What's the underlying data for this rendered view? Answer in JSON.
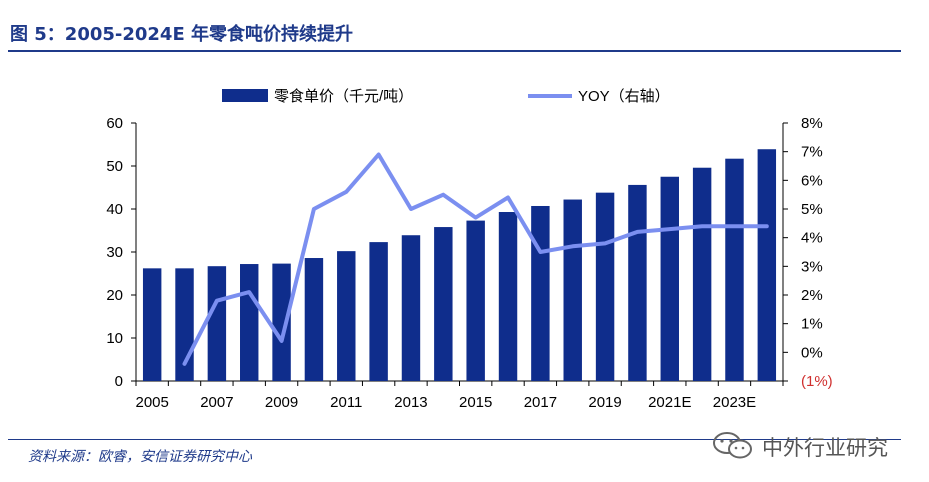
{
  "title": "图 5：2005-2024E 年零食吨价持续提升",
  "source": "资料来源：欧睿，安信证券研究中心",
  "watermark": "中外行业研究",
  "colors": {
    "bar": "#0f2d8c",
    "line": "#7b8ff0",
    "negative": "#d0302f",
    "title": "#1f3a8a",
    "text": "#000000"
  },
  "chart_data": {
    "type": "bar",
    "x": [
      "2005",
      "2006",
      "2007",
      "2008",
      "2009",
      "2010",
      "2011",
      "2012",
      "2013",
      "2014",
      "2015",
      "2016",
      "2017",
      "2018",
      "2019",
      "2020",
      "2021E",
      "2022E",
      "2023E",
      "2024E"
    ],
    "x_tick_labels": [
      "2005",
      "2007",
      "2009",
      "2011",
      "2013",
      "2015",
      "2017",
      "2019",
      "2021E",
      "2023E"
    ],
    "series": [
      {
        "name": "零食单价（千元/吨）",
        "type": "bar",
        "axis": "left",
        "values": [
          26.2,
          26.2,
          26.7,
          27.2,
          27.3,
          28.6,
          30.2,
          32.3,
          33.9,
          35.8,
          37.3,
          39.3,
          40.7,
          42.2,
          43.8,
          45.6,
          47.5,
          49.6,
          51.7,
          53.9
        ]
      },
      {
        "name": "YOY（右轴）",
        "type": "line",
        "axis": "right",
        "values": [
          null,
          -0.4,
          1.8,
          2.1,
          0.4,
          5.0,
          5.6,
          6.9,
          5.0,
          5.5,
          4.7,
          5.4,
          3.5,
          3.7,
          3.8,
          4.2,
          4.3,
          4.4,
          4.4,
          4.4
        ]
      }
    ],
    "y_left": {
      "ylim": [
        0,
        60
      ],
      "ticks": [
        "0",
        "10",
        "20",
        "30",
        "40",
        "50",
        "60"
      ]
    },
    "y_right": {
      "ylim": [
        -1,
        8
      ],
      "ticks": [
        "(1%)",
        "0%",
        "1%",
        "2%",
        "3%",
        "4%",
        "5%",
        "6%",
        "7%",
        "8%"
      ]
    },
    "grid": false,
    "legend": "top"
  }
}
